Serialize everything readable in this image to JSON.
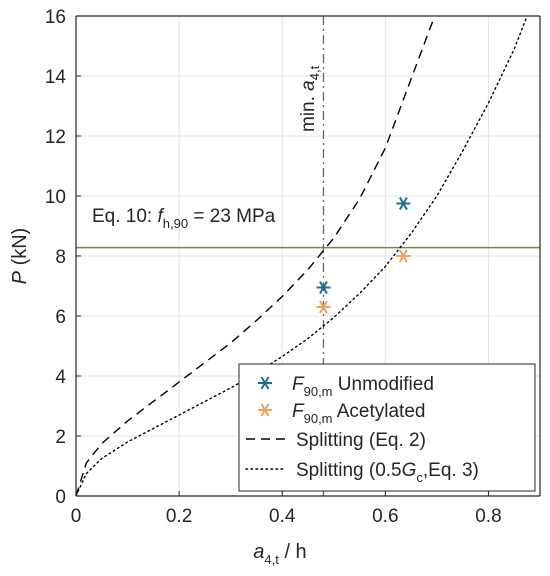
{
  "chart_data": {
    "type": "line",
    "xlabel": {
      "main": "a",
      "sub": "4,t",
      "rest": " / h"
    },
    "ylabel": {
      "main": "P",
      "rest": " (kN)"
    },
    "xlim": [
      0,
      0.9
    ],
    "ylim": [
      0,
      16
    ],
    "xticks": [
      0,
      0.2,
      0.4,
      0.6,
      0.8
    ],
    "xtick_labels": [
      "0",
      "0.2",
      "0.4",
      "0.6",
      "0.8"
    ],
    "yticks": [
      0,
      2,
      4,
      6,
      8,
      10,
      12,
      14,
      16
    ],
    "ytick_labels": [
      "0",
      "2",
      "4",
      "6",
      "8",
      "10",
      "12",
      "14",
      "16"
    ],
    "grid": true,
    "colors": {
      "unmodified": "#1f6f8b",
      "acetylated": "#f0a060",
      "eq10_line": "#7a8a3a",
      "min_line": "#666666",
      "curve": "#000000",
      "axis": "#262626",
      "grid": "#e3e3e3"
    },
    "vertical_line": {
      "x": 0.48,
      "label_pre": "min. ",
      "label_main": "a",
      "label_sub": "4,t"
    },
    "horizontal_line": {
      "y": 8.28,
      "label_pre": "Eq. 10: ",
      "label_main": "f",
      "label_sub": "h,90",
      "label_post": " = 23 MPa"
    },
    "series": [
      {
        "name_main": "F",
        "name_sub": "90,m",
        "name_rest": " Unmodified",
        "marker": "asterisk",
        "color": "#1f6f8b",
        "points": [
          [
            0.48,
            6.95
          ],
          [
            0.635,
            9.75
          ]
        ]
      },
      {
        "name_main": "F",
        "name_sub": "90,m",
        "name_rest": " Acetylated",
        "marker": "asterisk",
        "color": "#f0a060",
        "points": [
          [
            0.48,
            6.3
          ],
          [
            0.635,
            8.0
          ]
        ]
      },
      {
        "name": "Splitting (Eq. 2)",
        "style": "dashed",
        "color": "#000000",
        "points": [
          [
            0.0,
            0.0
          ],
          [
            0.02,
            1.1
          ],
          [
            0.05,
            1.75
          ],
          [
            0.1,
            2.5
          ],
          [
            0.15,
            3.15
          ],
          [
            0.2,
            3.8
          ],
          [
            0.25,
            4.45
          ],
          [
            0.3,
            5.1
          ],
          [
            0.35,
            5.85
          ],
          [
            0.4,
            6.65
          ],
          [
            0.45,
            7.55
          ],
          [
            0.5,
            8.6
          ],
          [
            0.55,
            9.9
          ],
          [
            0.6,
            11.6
          ],
          [
            0.65,
            13.9
          ],
          [
            0.7,
            16.2
          ]
        ]
      },
      {
        "name_pre": "Splitting (0.5",
        "name_main": "G",
        "name_sub": "c",
        "name_rest": ",Eq. 3)",
        "style": "dotted",
        "color": "#000000",
        "points": [
          [
            0.0,
            0.0
          ],
          [
            0.02,
            0.75
          ],
          [
            0.05,
            1.25
          ],
          [
            0.1,
            1.8
          ],
          [
            0.15,
            2.25
          ],
          [
            0.2,
            2.7
          ],
          [
            0.25,
            3.15
          ],
          [
            0.3,
            3.6
          ],
          [
            0.35,
            4.1
          ],
          [
            0.4,
            4.65
          ],
          [
            0.45,
            5.25
          ],
          [
            0.5,
            5.95
          ],
          [
            0.55,
            6.75
          ],
          [
            0.6,
            7.65
          ],
          [
            0.65,
            8.75
          ],
          [
            0.7,
            10.0
          ],
          [
            0.75,
            11.5
          ],
          [
            0.8,
            13.1
          ],
          [
            0.85,
            14.9
          ],
          [
            0.875,
            16.0
          ]
        ]
      }
    ],
    "legend": {
      "location": "bottom-right"
    }
  }
}
